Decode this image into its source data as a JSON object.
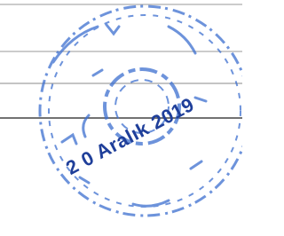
{
  "stamp": {
    "date": "2 0 Aralık 2019"
  }
}
